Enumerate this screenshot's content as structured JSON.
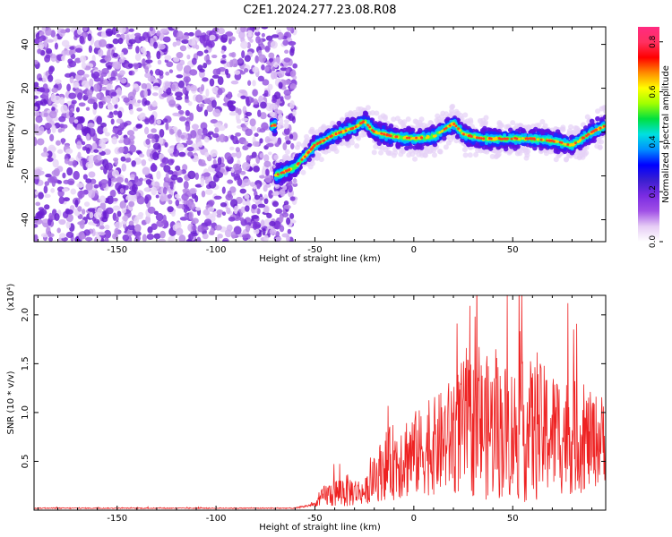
{
  "title": "C2E1.2024.277.23.08.R08",
  "chart_data": [
    {
      "type": "heatmap",
      "xlabel": "Height of straight line (km)",
      "ylabel": "Frequency (Hz)",
      "xlim": [
        -192,
        97
      ],
      "ylim": [
        -50,
        48
      ],
      "xticks": [
        -150,
        -100,
        -50,
        0,
        50
      ],
      "yticks": [
        -40,
        -20,
        0,
        20,
        40
      ],
      "colorbar": {
        "label": "Normalized spectral amplitude",
        "range": [
          0.0,
          0.86
        ],
        "ticks": [
          0.0,
          0.2,
          0.4,
          0.6,
          0.8
        ],
        "colormap": [
          "#ffffff",
          "#e6ccf5",
          "#a050e6",
          "#7a2be2",
          "#3a1fd0",
          "#0000ff",
          "#0090ff",
          "#00e0e0",
          "#00e040",
          "#a0ff00",
          "#ffff00",
          "#ff8c00",
          "#ff0000",
          "#ff3060",
          "#ff2a80"
        ]
      },
      "ridge": {
        "description_points": [
          {
            "x": -70,
            "y": -20
          },
          {
            "x": -60,
            "y": -16
          },
          {
            "x": -50,
            "y": -6
          },
          {
            "x": -40,
            "y": -1
          },
          {
            "x": -30,
            "y": 2
          },
          {
            "x": -25,
            "y": 5
          },
          {
            "x": -20,
            "y": 0
          },
          {
            "x": -10,
            "y": -2
          },
          {
            "x": 0,
            "y": -3
          },
          {
            "x": 10,
            "y": -2
          },
          {
            "x": 20,
            "y": 4
          },
          {
            "x": 25,
            "y": -1
          },
          {
            "x": 35,
            "y": -3
          },
          {
            "x": 50,
            "y": -3
          },
          {
            "x": 60,
            "y": -3
          },
          {
            "x": 70,
            "y": -4
          },
          {
            "x": 80,
            "y": -6
          },
          {
            "x": 90,
            "y": 0
          },
          {
            "x": 97,
            "y": 3
          }
        ]
      },
      "noise_region": {
        "xmin": -192,
        "xmax": -60
      }
    },
    {
      "type": "line",
      "xlabel": "Height of straight line (km)",
      "ylabel": "SNR (10 * v/v)",
      "y_multiplier": "(x10⁴)",
      "xlim": [
        -192,
        97
      ],
      "ylim": [
        0,
        2.2
      ],
      "xticks": [
        -150,
        -100,
        -50,
        0,
        50
      ],
      "yticks": [
        0.5,
        1.0,
        1.5,
        2.0
      ],
      "series_color": "#ee2222",
      "envelope": [
        {
          "x": -192,
          "mean": 0.02,
          "amp": 0.005
        },
        {
          "x": -60,
          "mean": 0.02,
          "amp": 0.005
        },
        {
          "x": -50,
          "mean": 0.06,
          "amp": 0.02
        },
        {
          "x": -45,
          "mean": 0.15,
          "amp": 0.12
        },
        {
          "x": -35,
          "mean": 0.2,
          "amp": 0.18
        },
        {
          "x": -25,
          "mean": 0.18,
          "amp": 0.12
        },
        {
          "x": -15,
          "mean": 0.45,
          "amp": 0.35
        },
        {
          "x": -5,
          "mean": 0.55,
          "amp": 0.45
        },
        {
          "x": 5,
          "mean": 0.6,
          "amp": 0.45
        },
        {
          "x": 15,
          "mean": 0.7,
          "amp": 0.55
        },
        {
          "x": 25,
          "mean": 0.85,
          "amp": 0.7
        },
        {
          "x": 35,
          "mean": 0.85,
          "amp": 0.75
        },
        {
          "x": 50,
          "mean": 0.8,
          "amp": 0.7
        },
        {
          "x": 60,
          "mean": 0.8,
          "amp": 0.75
        },
        {
          "x": 70,
          "mean": 0.8,
          "amp": 0.65
        },
        {
          "x": 80,
          "mean": 0.75,
          "amp": 0.6
        },
        {
          "x": 90,
          "mean": 0.7,
          "amp": 0.5
        },
        {
          "x": 97,
          "mean": 0.75,
          "amp": 0.45
        }
      ]
    }
  ]
}
